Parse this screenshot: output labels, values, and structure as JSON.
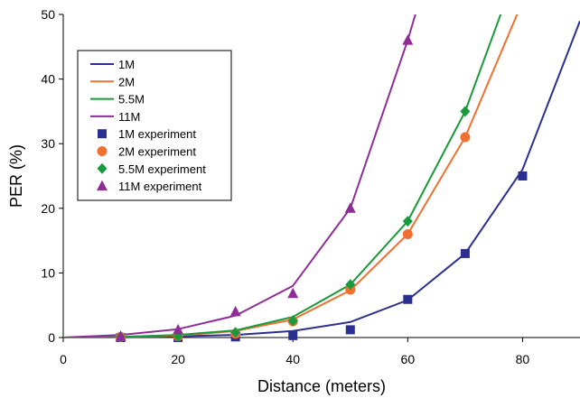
{
  "chart_data": {
    "type": "line",
    "xlabel": "Distance (meters)",
    "ylabel": "PER (%)",
    "xlim": [
      0,
      90
    ],
    "ylim": [
      0,
      50
    ],
    "x_ticks": [
      0,
      20,
      40,
      60,
      80
    ],
    "y_ticks": [
      0,
      10,
      20,
      30,
      40,
      50
    ],
    "grid": false,
    "legend_position": "top-left",
    "series": [
      {
        "name": "1M",
        "kind": "line",
        "color": "#2b2f8f",
        "x": [
          0,
          10,
          20,
          30,
          40,
          50,
          60,
          70,
          80,
          90
        ],
        "y": [
          0,
          0.05,
          0.2,
          0.4,
          1.0,
          2.4,
          5.8,
          13,
          26,
          49
        ]
      },
      {
        "name": "2M",
        "kind": "line",
        "color": "#f07030",
        "x": [
          0,
          10,
          20,
          30,
          40,
          50,
          60,
          70,
          80
        ],
        "y": [
          0,
          0.1,
          0.3,
          1.0,
          2.8,
          7.3,
          16,
          31,
          52
        ]
      },
      {
        "name": "5.5M",
        "kind": "line",
        "color": "#1a9a3c",
        "x": [
          0,
          10,
          20,
          30,
          40,
          50,
          60,
          70,
          77
        ],
        "y": [
          0,
          0.1,
          0.4,
          1.1,
          3.2,
          8.2,
          18,
          35,
          52
        ]
      },
      {
        "name": "11M",
        "kind": "line",
        "color": "#8e2d96",
        "x": [
          0,
          10,
          20,
          30,
          40,
          50,
          60,
          62
        ],
        "y": [
          0,
          0.4,
          1.3,
          3.4,
          8,
          20,
          46,
          52
        ]
      },
      {
        "name": "1M experiment",
        "kind": "square",
        "color": "#2b2f8f",
        "x": [
          10,
          20,
          30,
          40,
          50,
          60,
          70,
          80
        ],
        "y": [
          0,
          0,
          0.1,
          0.3,
          1.2,
          5.9,
          13,
          25
        ]
      },
      {
        "name": "2M experiment",
        "kind": "circle",
        "color": "#f07030",
        "x": [
          10,
          20,
          30,
          40,
          50,
          60,
          70
        ],
        "y": [
          0.1,
          0.2,
          0.6,
          2.5,
          7.4,
          16,
          31
        ]
      },
      {
        "name": "5.5M experiment",
        "kind": "diamond",
        "color": "#1a9a3c",
        "x": [
          10,
          20,
          30,
          40,
          50,
          60,
          70
        ],
        "y": [
          0.1,
          0.2,
          0.8,
          2.6,
          8.2,
          18,
          35
        ]
      },
      {
        "name": "11M experiment",
        "kind": "triangle",
        "color": "#8e2d96",
        "x": [
          10,
          20,
          30,
          40,
          50,
          60
        ],
        "y": [
          0.2,
          1.2,
          4,
          6.8,
          20,
          46
        ]
      }
    ]
  }
}
